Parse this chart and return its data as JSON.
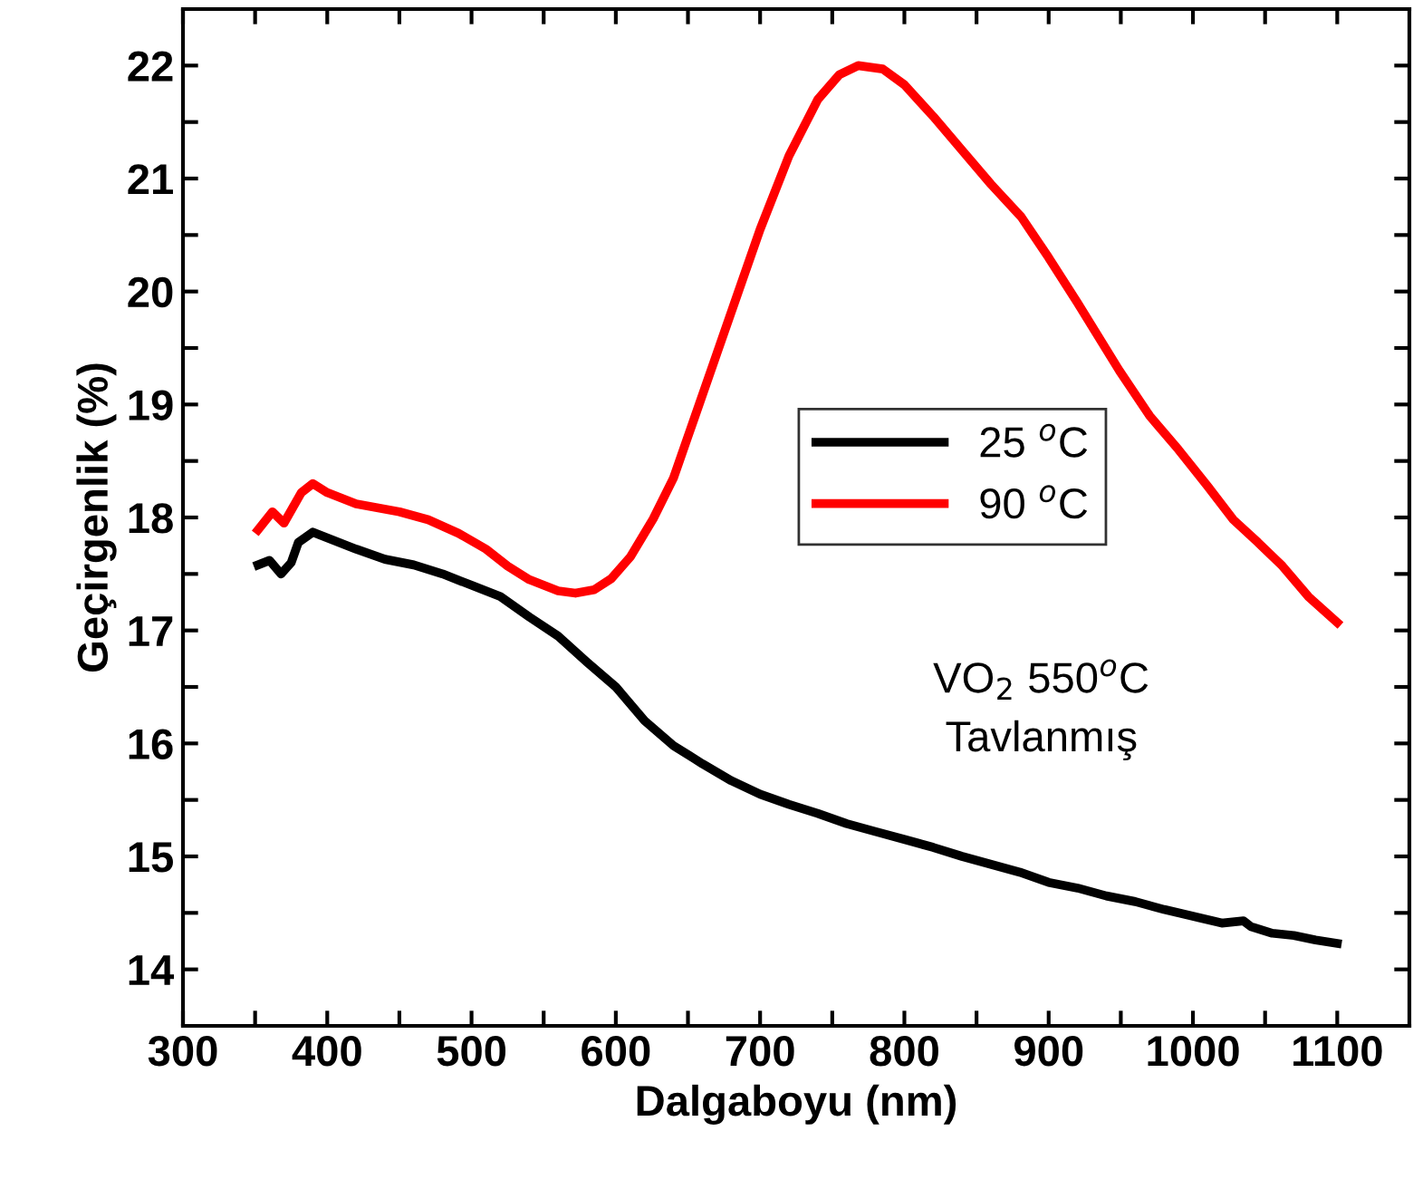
{
  "chart_data": {
    "type": "line",
    "xlabel": "Dalgaboyu (nm)",
    "ylabel": "Geçirgenlik (%)",
    "xlim": [
      300,
      1150
    ],
    "ylim": [
      13.5,
      22.5
    ],
    "xticks": [
      300,
      {
        "value": 350,
        "label": null
      },
      400,
      {
        "value": 450,
        "label": null
      },
      500,
      {
        "value": 550,
        "label": null
      },
      600,
      {
        "value": 650,
        "label": null
      },
      700,
      {
        "value": 750,
        "label": null
      },
      800,
      {
        "value": 850,
        "label": null
      },
      900,
      {
        "value": 950,
        "label": null
      },
      1000,
      {
        "value": 1050,
        "label": null
      },
      1100
    ],
    "yticks": [
      14,
      {
        "value": 14.5,
        "label": null
      },
      15,
      {
        "value": 15.5,
        "label": null
      },
      16,
      {
        "value": 16.5,
        "label": null
      },
      17,
      {
        "value": 17.5,
        "label": null
      },
      18,
      {
        "value": 18.5,
        "label": null
      },
      19,
      {
        "value": 19.5,
        "label": null
      },
      20,
      {
        "value": 20.5,
        "label": null
      },
      21,
      {
        "value": 21.5,
        "label": null
      },
      22
    ],
    "grid": false,
    "legend": "right",
    "line_style": "solid",
    "annotations": [
      "VO$_{2}$ 550$^{o}$C\nTavlanmış"
    ],
    "series": [
      {
        "name": "25 $^{o}$C",
        "color": "#000000",
        "x": [
          352,
          360,
          368,
          375,
          380,
          390,
          400,
          420,
          440,
          460,
          480,
          500,
          520,
          540,
          560,
          580,
          600,
          620,
          640,
          660,
          680,
          700,
          720,
          740,
          760,
          780,
          800,
          820,
          840,
          860,
          880,
          900,
          920,
          940,
          960,
          980,
          1000,
          1020,
          1035,
          1040,
          1055,
          1070,
          1085,
          1100
        ],
        "values": [
          17.58,
          17.62,
          17.5,
          17.6,
          17.78,
          17.87,
          17.82,
          17.72,
          17.63,
          17.58,
          17.5,
          17.4,
          17.3,
          17.12,
          16.95,
          16.72,
          16.5,
          16.2,
          15.98,
          15.82,
          15.67,
          15.55,
          15.46,
          15.38,
          15.29,
          15.22,
          15.15,
          15.08,
          15.0,
          14.93,
          14.86,
          14.77,
          14.72,
          14.65,
          14.6,
          14.53,
          14.47,
          14.41,
          14.43,
          14.38,
          14.32,
          14.3,
          14.26,
          14.23
        ]
      },
      {
        "name": "90 $^{o}$C",
        "color": "#ff0000",
        "x": [
          352,
          362,
          370,
          382,
          390,
          400,
          420,
          450,
          470,
          491,
          510,
          525,
          540,
          560,
          572,
          585,
          597,
          610,
          626,
          640,
          655,
          670,
          685,
          700,
          720,
          740,
          755,
          768,
          785,
          800,
          820,
          840,
          860,
          881,
          900,
          920,
          949,
          970,
          990,
          1010,
          1028,
          1045,
          1062,
          1080,
          1100
        ],
        "values": [
          17.89,
          18.05,
          17.95,
          18.22,
          18.3,
          18.22,
          18.12,
          18.05,
          17.98,
          17.86,
          17.72,
          17.57,
          17.45,
          17.35,
          17.33,
          17.36,
          17.46,
          17.65,
          17.99,
          18.35,
          18.9,
          19.45,
          20.0,
          20.55,
          21.2,
          21.7,
          21.92,
          22.0,
          21.97,
          21.83,
          21.55,
          21.25,
          20.95,
          20.66,
          20.3,
          19.9,
          19.3,
          18.9,
          18.6,
          18.28,
          17.98,
          17.78,
          17.57,
          17.3,
          17.07
        ]
      }
    ]
  }
}
